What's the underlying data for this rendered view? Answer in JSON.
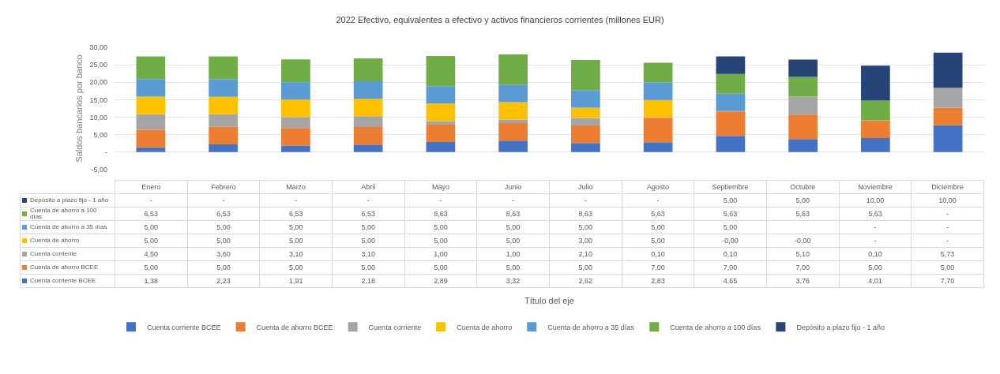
{
  "chart_data": {
    "type": "bar",
    "stacked": true,
    "title": "2022 Efectivo, equivalentes a efectivo y activos financieros corrientes (millones EUR)",
    "annotations": [
      "Título del eje"
    ],
    "ylabel": "Saldos bancarios por banco",
    "categories": [
      "Enero",
      "Febrero",
      "Marzo",
      "Abril",
      "Mayo",
      "Junio",
      "Julio",
      "Agosto",
      "Septiembre",
      "Octubre",
      "Noviembre",
      "Diciembre"
    ],
    "ylim": [
      -5,
      30
    ],
    "yticks": [
      {
        "value": -5,
        "label": "-5,00"
      },
      {
        "value": 0,
        "label": "-"
      },
      {
        "value": 5,
        "label": "5,00"
      },
      {
        "value": 10,
        "label": "10,00"
      },
      {
        "value": 15,
        "label": "15,00"
      },
      {
        "value": 20,
        "label": "20,00"
      },
      {
        "value": 25,
        "label": "25,00"
      },
      {
        "value": 30,
        "label": "30,00"
      }
    ],
    "grid": "y",
    "legend": "bottom",
    "series": [
      {
        "name": "Cuenta corriente BCEE",
        "color": "#4472c4",
        "values": [
          1.38,
          2.23,
          1.91,
          2.18,
          2.89,
          3.32,
          2.62,
          2.83,
          4.65,
          3.76,
          4.01,
          7.7
        ],
        "value_labels": [
          "1,38",
          "2,23",
          "1,91",
          "2,18",
          "2,89",
          "3,32",
          "2,62",
          "2,83",
          "4,65",
          "3,76",
          "4,01",
          "7,70"
        ]
      },
      {
        "name": "Cuenta de ahorro BCEE",
        "color": "#ed7d31",
        "values": [
          5,
          5,
          5,
          5,
          5,
          5,
          5,
          7,
          7,
          7,
          5,
          5
        ],
        "value_labels": [
          "5,00",
          "5,00",
          "5,00",
          "5,00",
          "5,00",
          "5,00",
          "5,00",
          "7,00",
          "7,00",
          "7,00",
          "5,00",
          "5,00"
        ]
      },
      {
        "name": "Cuenta corriente",
        "color": "#a5a5a5",
        "values": [
          4.5,
          3.6,
          3.1,
          3.1,
          1,
          1,
          2.1,
          0.1,
          0.1,
          5.1,
          0.1,
          5.73
        ],
        "value_labels": [
          "4,50",
          "3,60",
          "3,10",
          "3,10",
          "1,00",
          "1,00",
          "2,10",
          "0,10",
          "0,10",
          "5,10",
          "0,10",
          "5,73"
        ]
      },
      {
        "name": "Cuenta de ahorro",
        "color": "#ffc000",
        "values": [
          5,
          5,
          5,
          5,
          5,
          5,
          3,
          5,
          0,
          0,
          0,
          0
        ],
        "value_labels": [
          "5,00",
          "5,00",
          "5,00",
          "5,00",
          "5,00",
          "5,00",
          "3,00",
          "5,00",
          "-0,00",
          "-0,00",
          "-",
          "-"
        ]
      },
      {
        "name": "Cuenta de ahorro a 35 días",
        "color": "#5b9bd5",
        "values": [
          5,
          5,
          5,
          5,
          5,
          5,
          5,
          5,
          5,
          null,
          0,
          0
        ],
        "value_labels": [
          "5,00",
          "5,00",
          "5,00",
          "5,00",
          "5,00",
          "5,00",
          "5,00",
          "5,00",
          "5,00",
          null,
          "-",
          "-"
        ]
      },
      {
        "name": "Cuenta de ahorro a 100 días",
        "color": "#70ad47",
        "values": [
          6.53,
          6.53,
          6.53,
          6.53,
          8.63,
          8.63,
          8.63,
          5.63,
          5.63,
          5.63,
          5.63,
          0
        ],
        "value_labels": [
          "6,53",
          "6,53",
          "6,53",
          "6,53",
          "8,63",
          "8,63",
          "8,63",
          "5,63",
          "5,63",
          "5,63",
          "5,63",
          "-"
        ]
      },
      {
        "name": "Depósito a plazo fijo - 1 año",
        "color": "#264478",
        "values": [
          0,
          0,
          0,
          0,
          0,
          0,
          0,
          0,
          5,
          5,
          10,
          10
        ],
        "value_labels": [
          "-",
          "-",
          "-",
          "-",
          "-",
          "-",
          "-",
          "-",
          "5,00",
          "5,00",
          "10,00",
          "10,00"
        ]
      }
    ]
  }
}
